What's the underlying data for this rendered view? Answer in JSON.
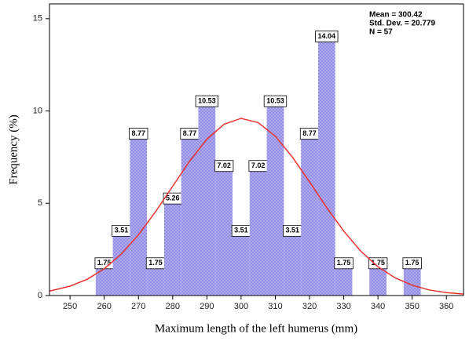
{
  "chart_data": {
    "type": "histogram",
    "xlabel": "Maximum length of the left humerus (mm)",
    "ylabel": "Frequency (%)",
    "bins": [
      257.5,
      262.5,
      267.5,
      272.5,
      277.5,
      282.5,
      287.5,
      292.5,
      297.5,
      302.5,
      307.5,
      312.5,
      317.5,
      322.5,
      327.5,
      332.5,
      337.5,
      342.5,
      347.5,
      352.5
    ],
    "values": [
      1.75,
      3.51,
      8.77,
      1.75,
      5.26,
      8.77,
      10.53,
      7.02,
      3.51,
      7.02,
      10.53,
      3.51,
      8.77,
      14.04,
      1.75,
      0,
      1.75,
      0,
      1.75
    ],
    "color": "#b7b2f2",
    "xlim": [
      244,
      365
    ],
    "xticks": [
      250,
      260,
      270,
      280,
      290,
      300,
      310,
      320,
      330,
      340,
      350,
      360
    ],
    "ylim": [
      0,
      15.8
    ],
    "yticks": [
      0,
      5,
      10,
      15
    ],
    "annotation": [
      "Mean = 300.42",
      "Std. Dev. = 20.779",
      "N = 57"
    ],
    "curve": {
      "color": "#e8332f",
      "x": [
        244,
        250,
        255,
        260,
        265,
        270,
        275,
        280,
        285,
        290,
        295,
        300,
        305,
        310,
        315,
        320,
        325,
        330,
        335,
        340,
        345,
        350,
        355,
        360,
        365
      ],
      "values": [
        0.24,
        0.51,
        0.88,
        1.45,
        2.25,
        3.29,
        4.54,
        5.92,
        7.29,
        8.47,
        9.28,
        9.6,
        9.37,
        8.63,
        7.5,
        6.16,
        4.77,
        3.49,
        2.4,
        1.56,
        0.96,
        0.56,
        0.3,
        0.16,
        0.08
      ]
    }
  }
}
